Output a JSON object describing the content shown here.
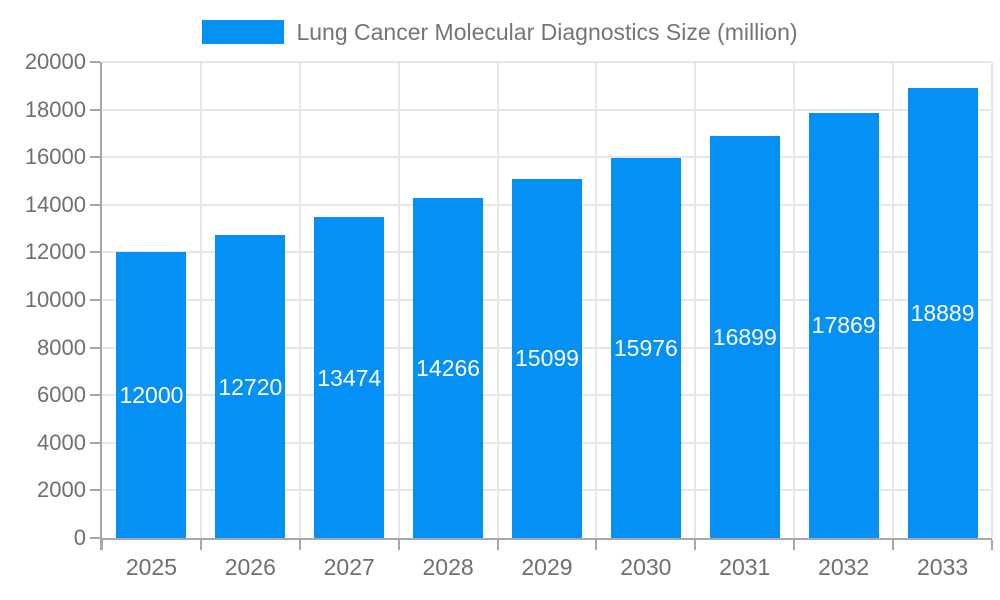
{
  "legend": {
    "label": "Lung Cancer Molecular Diagnostics Size (million)"
  },
  "chart_data": {
    "type": "bar",
    "title": "Lung Cancer Molecular Diagnostics Size (million)",
    "categories": [
      "2025",
      "2026",
      "2027",
      "2028",
      "2029",
      "2030",
      "2031",
      "2032",
      "2033"
    ],
    "values": [
      12000,
      12720,
      13474,
      14266,
      15099,
      15976,
      16899,
      17869,
      18889
    ],
    "xlabel": "",
    "ylabel": "",
    "ylim": [
      0,
      20000
    ],
    "ytick_step": 2000,
    "ytick_labels": [
      "0",
      "2000",
      "4000",
      "6000",
      "8000",
      "10000",
      "12000",
      "14000",
      "16000",
      "18000",
      "20000"
    ],
    "grid": true,
    "legend_position": "top-center",
    "bar_value_labels_inside": true,
    "colors": {
      "bar": "#0590f6",
      "bar_label": "#ffffff",
      "axis": "#a8a8a8",
      "grid": "#e6e6e6",
      "tick_label": "#6f6f6f",
      "legend_text": "#757575"
    }
  }
}
